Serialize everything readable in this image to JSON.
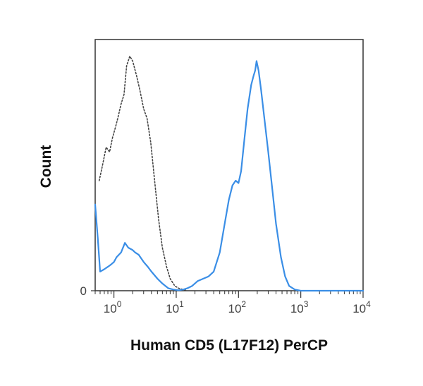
{
  "chart_data": {
    "type": "line",
    "title": "",
    "xlabel": "Human CD5 (L17F12) PerCP",
    "ylabel": "Count",
    "x_scale": "log",
    "xlim": [
      0.5,
      10000
    ],
    "ylim": [
      0,
      105
    ],
    "grid": false,
    "legend": "none",
    "x_ticks": [
      {
        "value": 1,
        "base": "10",
        "exp": "0"
      },
      {
        "value": 10,
        "base": "10",
        "exp": "1"
      },
      {
        "value": 100,
        "base": "10",
        "exp": "2"
      },
      {
        "value": 1000,
        "base": "10",
        "exp": "3"
      },
      {
        "value": 10000,
        "base": "10",
        "exp": "4"
      }
    ],
    "y_ticks": [
      {
        "value": 0,
        "label": "0"
      }
    ],
    "series": [
      {
        "style": "dotted",
        "color": "#444444",
        "x": [
          0.58,
          0.65,
          0.75,
          0.85,
          0.95,
          1.05,
          1.15,
          1.3,
          1.45,
          1.6,
          1.8,
          2.0,
          2.3,
          2.6,
          3.0,
          3.4,
          3.9,
          4.5,
          5.2,
          6.0,
          7.0,
          8.0,
          9.5,
          11,
          13,
          15
        ],
        "y": [
          46,
          52,
          60,
          58,
          64,
          68,
          72,
          78,
          82,
          94,
          98,
          96,
          90,
          84,
          76,
          72,
          62,
          46,
          30,
          18,
          10,
          5,
          2,
          1,
          0.5,
          0
        ]
      },
      {
        "style": "solid",
        "color": "#3a8ee6",
        "x": [
          0.5,
          0.55,
          0.6,
          0.7,
          0.8,
          0.9,
          1.0,
          1.1,
          1.3,
          1.5,
          1.7,
          2.0,
          2.2,
          2.5,
          3.0,
          3.5,
          4.0,
          5.0,
          6.0,
          7.5,
          9.0,
          11,
          13,
          15,
          18,
          22,
          27,
          33,
          40,
          50,
          60,
          70,
          80,
          90,
          100,
          110,
          125,
          140,
          160,
          175,
          185,
          195,
          210,
          230,
          260,
          300,
          350,
          400,
          480,
          560,
          650,
          800,
          1000,
          2000,
          5000,
          10000
        ],
        "y": [
          36,
          22,
          8,
          9,
          10,
          11,
          12,
          14,
          16,
          20,
          18,
          17,
          16,
          15,
          12,
          10,
          8,
          5,
          3,
          1,
          0.5,
          0.2,
          0.5,
          1,
          2,
          4,
          5,
          6,
          8,
          16,
          28,
          38,
          44,
          46,
          45,
          50,
          64,
          76,
          86,
          90,
          92,
          96,
          92,
          84,
          72,
          58,
          42,
          28,
          14,
          6,
          2,
          0.5,
          0,
          0,
          0,
          0
        ]
      }
    ]
  }
}
